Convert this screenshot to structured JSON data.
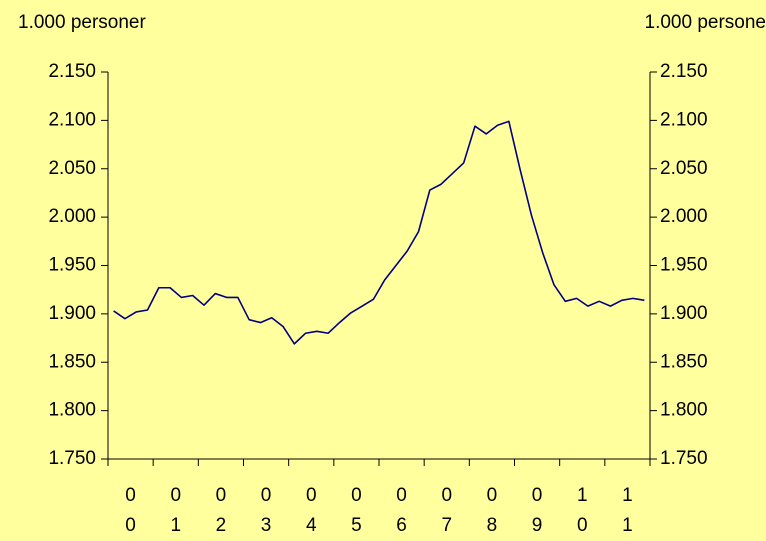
{
  "chart_data": {
    "type": "line",
    "ylabel": "1.000 personer",
    "y2label": "1.000 persone",
    "categories": [
      "00",
      null,
      null,
      null,
      "01",
      null,
      null,
      null,
      "02",
      null,
      null,
      null,
      "03",
      null,
      null,
      null,
      "04",
      null,
      null,
      null,
      "05",
      null,
      null,
      null,
      "06",
      null,
      null,
      null,
      "07",
      null,
      null,
      null,
      "08",
      null,
      null,
      null,
      "09",
      null,
      null,
      null,
      "10",
      null,
      null,
      null,
      "11",
      null,
      null,
      null
    ],
    "series": [
      {
        "color": "#000080",
        "values": [
          1903,
          1895,
          1902,
          1904,
          1927,
          1927,
          1917,
          1919,
          1909,
          1921,
          1917,
          1917,
          1894,
          1891,
          1896,
          1887,
          1869,
          1880,
          1882,
          1880,
          1891,
          1901,
          1908,
          1915,
          1935,
          1950,
          1965,
          1985,
          2028,
          2034,
          2045,
          2056,
          2094,
          2086,
          2095,
          2099,
          2049,
          2002,
          1963,
          1930,
          1913,
          1916,
          1908,
          1913,
          1908,
          1914,
          1916,
          1914
        ]
      }
    ],
    "ylim": [
      1750,
      2150
    ],
    "yticks": [
      {
        "value": 1750,
        "label": "1.750"
      },
      {
        "value": 1800,
        "label": "1.800"
      },
      {
        "value": 1850,
        "label": "1.850"
      },
      {
        "value": 1900,
        "label": "1.900"
      },
      {
        "value": 1950,
        "label": "1.950"
      },
      {
        "value": 2000,
        "label": "2.000"
      },
      {
        "value": 2050,
        "label": "2.050"
      },
      {
        "value": 2100,
        "label": "2.100"
      },
      {
        "value": 2150,
        "label": "2.150"
      }
    ],
    "y2lim": [
      1750,
      2150
    ],
    "y2ticks": [
      {
        "value": 1750,
        "label": "1.750"
      },
      {
        "value": 1800,
        "label": "1.800"
      },
      {
        "value": 1850,
        "label": "1.850"
      },
      {
        "value": 1900,
        "label": "1.900"
      },
      {
        "value": 1950,
        "label": "1.950"
      },
      {
        "value": 2000,
        "label": "2.000"
      },
      {
        "value": 2050,
        "label": "2.050"
      },
      {
        "value": 2100,
        "label": "2.100"
      },
      {
        "value": 2150,
        "label": "2.150"
      }
    ]
  }
}
